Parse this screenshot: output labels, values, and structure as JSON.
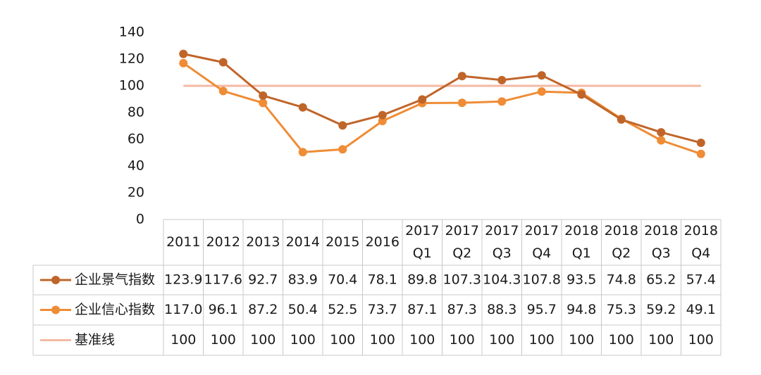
{
  "chart_data": {
    "type": "line",
    "categories": [
      [
        "2011"
      ],
      [
        "2012"
      ],
      [
        "2013"
      ],
      [
        "2014"
      ],
      [
        "2015"
      ],
      [
        "2016"
      ],
      [
        "2017",
        "Q1"
      ],
      [
        "2017",
        "Q2"
      ],
      [
        "2017",
        "Q3"
      ],
      [
        "2017",
        "Q4"
      ],
      [
        "2018",
        "Q1"
      ],
      [
        "2018",
        "Q2"
      ],
      [
        "2018",
        "Q3"
      ],
      [
        "2018",
        "Q4"
      ]
    ],
    "ylim": [
      0,
      140
    ],
    "yticks": [
      "0",
      "20",
      "40",
      "60",
      "80",
      "100",
      "120",
      "140"
    ],
    "grid": false,
    "legend": "table-left",
    "series": [
      {
        "name": "企业景气指数",
        "color": "#c0652a",
        "marker": "circle",
        "values": [
          123.9,
          117.6,
          92.7,
          83.9,
          70.4,
          78.1,
          89.8,
          107.3,
          104.3,
          107.8,
          93.5,
          74.8,
          65.2,
          57.4
        ],
        "labels": [
          "123.9",
          "117.6",
          "92.7",
          "83.9",
          "70.4",
          "78.1",
          "89.8",
          "107.3",
          "104.3",
          "107.8",
          "93.5",
          "74.8",
          "65.2",
          "57.4"
        ]
      },
      {
        "name": "企业信心指数",
        "color": "#ef8c35",
        "marker": "circle",
        "values": [
          117.0,
          96.1,
          87.2,
          50.4,
          52.5,
          73.7,
          87.1,
          87.3,
          88.3,
          95.7,
          94.8,
          75.3,
          59.2,
          49.1
        ],
        "labels": [
          "117.0",
          "96.1",
          "87.2",
          "50.4",
          "52.5",
          "73.7",
          "87.1",
          "87.3",
          "88.3",
          "95.7",
          "94.8",
          "75.3",
          "59.2",
          "49.1"
        ]
      },
      {
        "name": "基准线",
        "color": "#f4b9a3",
        "marker": "none",
        "values": [
          100,
          100,
          100,
          100,
          100,
          100,
          100,
          100,
          100,
          100,
          100,
          100,
          100,
          100
        ],
        "labels": [
          "100",
          "100",
          "100",
          "100",
          "100",
          "100",
          "100",
          "100",
          "100",
          "100",
          "100",
          "100",
          "100",
          "100"
        ]
      }
    ]
  }
}
